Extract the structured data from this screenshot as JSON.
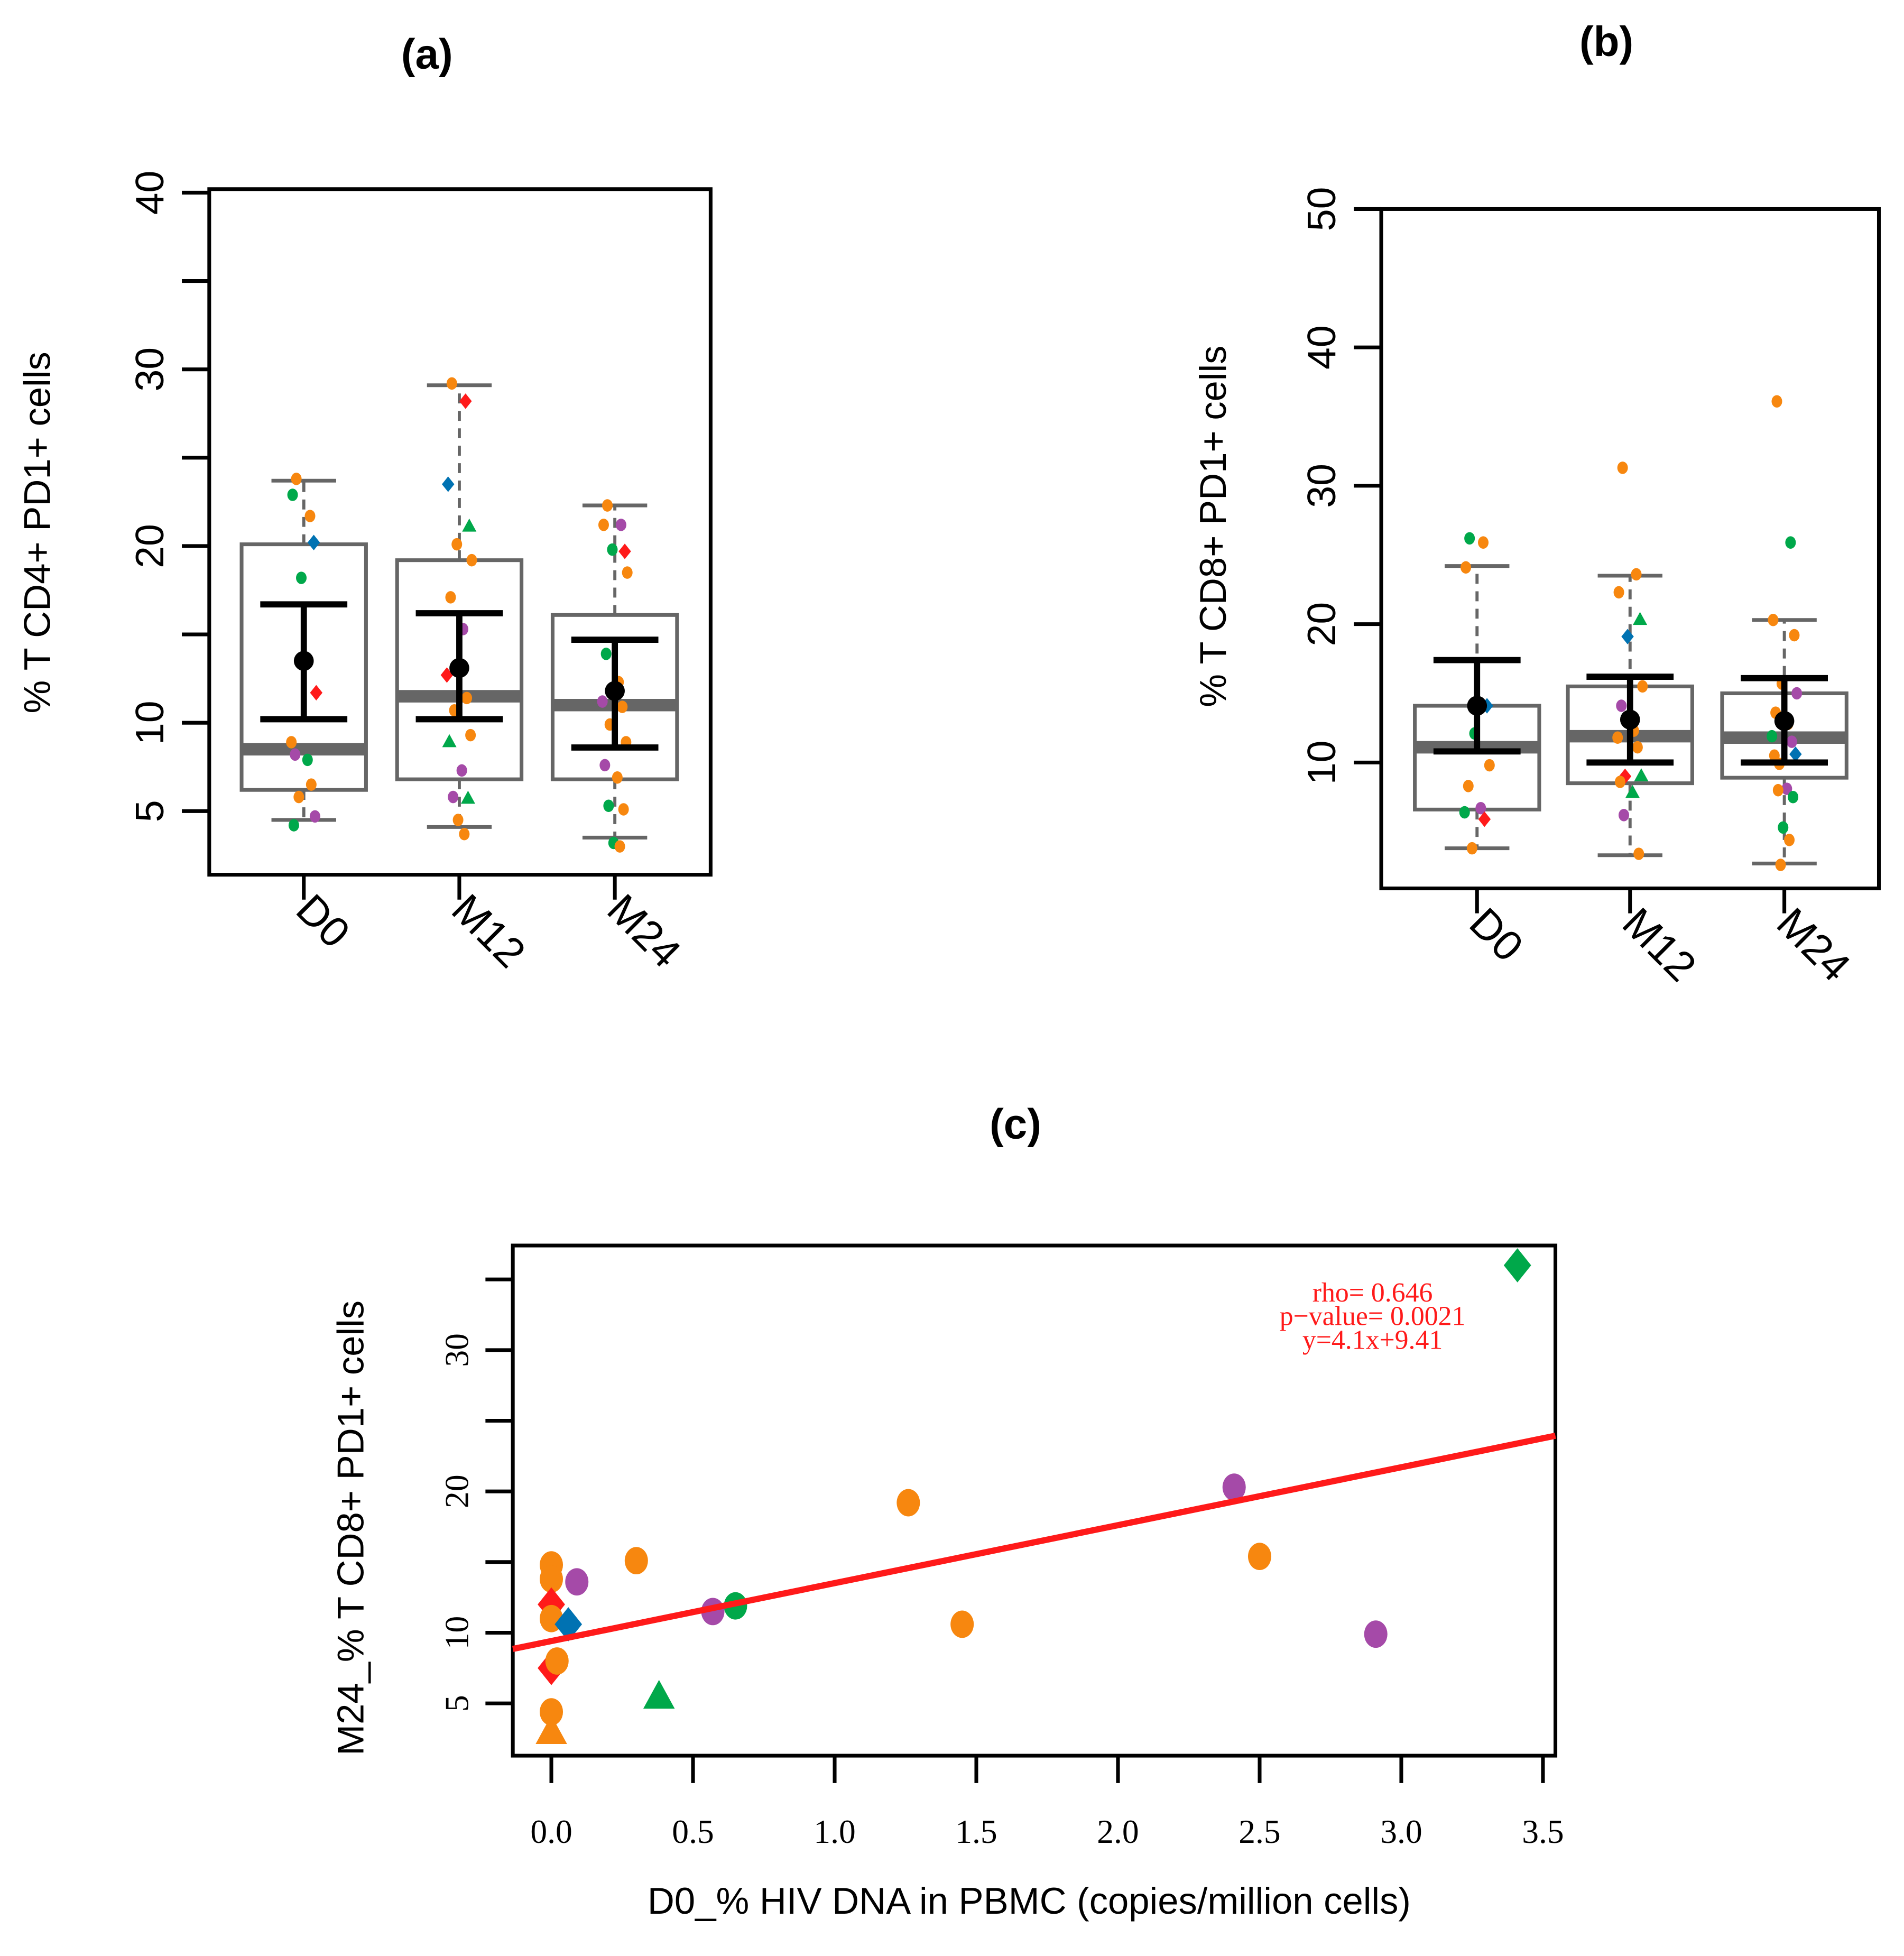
{
  "colors": {
    "orange": "#F7870F",
    "green": "#00A84A",
    "blue": "#0072B2",
    "red": "#FF1A1A",
    "purple": "#A54AA8",
    "line": "#FF1A1A",
    "box": "#666666"
  },
  "chart_data": [
    {
      "id": "a",
      "type": "box",
      "panel_label": "(a)",
      "ylabel": "% T CD4+ PD1+ cells",
      "ylim": [
        1.4,
        40.2
      ],
      "yticks": [
        5,
        10,
        15,
        20,
        25,
        30,
        35,
        40
      ],
      "ytick_labels": [
        "5",
        "10",
        "",
        "20",
        "",
        "30",
        "",
        "40"
      ],
      "categories": [
        "D0",
        "M12",
        "M24"
      ],
      "boxes": [
        {
          "q1": 6.2,
          "median": 8.5,
          "q3": 20.1,
          "whisker_low": 4.5,
          "whisker_high": 23.7,
          "mean": 13.5,
          "ci": [
            10.2,
            16.7
          ]
        },
        {
          "q1": 6.8,
          "median": 11.5,
          "q3": 19.2,
          "whisker_low": 4.1,
          "whisker_high": 29.1,
          "mean": 13.1,
          "ci": [
            10.2,
            16.2
          ]
        },
        {
          "q1": 6.8,
          "median": 11.0,
          "q3": 16.1,
          "whisker_low": 3.5,
          "whisker_high": 22.3,
          "mean": 11.8,
          "ci": [
            8.6,
            14.7
          ]
        }
      ],
      "points": [
        [
          [
            23.8,
            "orange",
            "circle"
          ],
          [
            21.7,
            "orange",
            "circle"
          ],
          [
            22.9,
            "green",
            "circle"
          ],
          [
            20.2,
            "blue",
            "diamond"
          ],
          [
            18.2,
            "green",
            "circle"
          ],
          [
            11.7,
            "red",
            "diamond"
          ],
          [
            8.2,
            "purple",
            "circle"
          ],
          [
            7.9,
            "green",
            "circle"
          ],
          [
            8.9,
            "orange",
            "circle"
          ],
          [
            6.5,
            "orange",
            "circle"
          ],
          [
            5.8,
            "orange",
            "circle"
          ],
          [
            4.7,
            "purple",
            "circle"
          ],
          [
            4.2,
            "green",
            "circle"
          ]
        ],
        [
          [
            29.2,
            "orange",
            "circle"
          ],
          [
            28.2,
            "red",
            "diamond"
          ],
          [
            23.5,
            "blue",
            "diamond"
          ],
          [
            21.1,
            "green",
            "triangle"
          ],
          [
            20.1,
            "orange",
            "circle"
          ],
          [
            19.2,
            "orange",
            "circle"
          ],
          [
            17.1,
            "orange",
            "circle"
          ],
          [
            15.3,
            "purple",
            "circle"
          ],
          [
            12.7,
            "red",
            "diamond"
          ],
          [
            11.4,
            "orange",
            "circle"
          ],
          [
            10.7,
            "orange",
            "circle"
          ],
          [
            9.3,
            "orange",
            "circle"
          ],
          [
            8.9,
            "green",
            "triangle"
          ],
          [
            7.3,
            "purple",
            "circle"
          ],
          [
            5.8,
            "purple",
            "circle"
          ],
          [
            5.7,
            "green",
            "triangle"
          ],
          [
            4.5,
            "orange",
            "circle"
          ],
          [
            3.7,
            "orange",
            "circle"
          ]
        ],
        [
          [
            22.3,
            "orange",
            "circle"
          ],
          [
            21.2,
            "purple",
            "circle"
          ],
          [
            21.2,
            "orange",
            "circle"
          ],
          [
            19.7,
            "red",
            "diamond"
          ],
          [
            19.8,
            "green",
            "circle"
          ],
          [
            18.5,
            "orange",
            "circle"
          ],
          [
            13.9,
            "green",
            "circle"
          ],
          [
            12.3,
            "orange",
            "circle"
          ],
          [
            11.2,
            "purple",
            "circle"
          ],
          [
            10.9,
            "orange",
            "circle"
          ],
          [
            9.9,
            "orange",
            "circle"
          ],
          [
            8.9,
            "orange",
            "circle"
          ],
          [
            7.6,
            "purple",
            "circle"
          ],
          [
            6.9,
            "orange",
            "circle"
          ],
          [
            5.3,
            "green",
            "circle"
          ],
          [
            5.1,
            "orange",
            "circle"
          ],
          [
            3.2,
            "green",
            "circle"
          ],
          [
            3.0,
            "orange",
            "circle"
          ]
        ]
      ]
    },
    {
      "id": "b",
      "type": "box",
      "panel_label": "(b)",
      "ylabel": "% T CD8+ PD1+ cells",
      "ylim": [
        0.9,
        50
      ],
      "yticks": [
        10,
        20,
        30,
        40,
        50
      ],
      "ytick_labels": [
        "10",
        "20",
        "30",
        "40",
        "50"
      ],
      "categories": [
        "D0",
        "M12",
        "M24"
      ],
      "boxes": [
        {
          "q1": 6.6,
          "median": 11.1,
          "q3": 14.1,
          "whisker_low": 3.8,
          "whisker_high": 24.2,
          "mean": 14.1,
          "ci": [
            10.8,
            17.4
          ]
        },
        {
          "q1": 8.5,
          "median": 11.9,
          "q3": 15.5,
          "whisker_low": 3.3,
          "whisker_high": 23.5,
          "mean": 13.1,
          "ci": [
            10.0,
            16.2
          ]
        },
        {
          "q1": 8.9,
          "median": 11.8,
          "q3": 15.0,
          "whisker_low": 2.7,
          "whisker_high": 20.3,
          "mean": 13.0,
          "ci": [
            10.0,
            16.1
          ]
        }
      ],
      "points": [
        [
          [
            26.2,
            "green",
            "circle"
          ],
          [
            25.9,
            "orange",
            "circle"
          ],
          [
            24.1,
            "orange",
            "circle"
          ],
          [
            14.1,
            "blue",
            "diamond"
          ],
          [
            12.1,
            "green",
            "circle"
          ],
          [
            9.8,
            "orange",
            "circle"
          ],
          [
            8.3,
            "orange",
            "circle"
          ],
          [
            6.7,
            "purple",
            "circle"
          ],
          [
            6.4,
            "green",
            "circle"
          ],
          [
            5.9,
            "red",
            "diamond"
          ],
          [
            3.8,
            "orange",
            "circle"
          ]
        ],
        [
          [
            31.3,
            "orange",
            "circle"
          ],
          [
            23.6,
            "orange",
            "circle"
          ],
          [
            22.3,
            "orange",
            "circle"
          ],
          [
            20.3,
            "green",
            "triangle"
          ],
          [
            19.1,
            "blue",
            "diamond"
          ],
          [
            15.5,
            "orange",
            "circle"
          ],
          [
            14.1,
            "purple",
            "circle"
          ],
          [
            12.3,
            "orange",
            "circle"
          ],
          [
            11.8,
            "orange",
            "circle"
          ],
          [
            11.1,
            "orange",
            "circle"
          ],
          [
            9.0,
            "red",
            "diamond"
          ],
          [
            9.0,
            "green",
            "triangle"
          ],
          [
            8.6,
            "orange",
            "circle"
          ],
          [
            7.8,
            "green",
            "triangle"
          ],
          [
            6.2,
            "purple",
            "circle"
          ],
          [
            3.4,
            "orange",
            "circle"
          ]
        ],
        [
          [
            36.1,
            "orange",
            "circle"
          ],
          [
            25.9,
            "green",
            "circle"
          ],
          [
            20.3,
            "orange",
            "circle"
          ],
          [
            19.2,
            "orange",
            "circle"
          ],
          [
            15.7,
            "orange",
            "circle"
          ],
          [
            15.0,
            "purple",
            "circle"
          ],
          [
            13.6,
            "orange",
            "circle"
          ],
          [
            12.8,
            "orange",
            "circle"
          ],
          [
            11.9,
            "green",
            "circle"
          ],
          [
            11.5,
            "purple",
            "circle"
          ],
          [
            9.9,
            "orange",
            "circle"
          ],
          [
            10.6,
            "blue",
            "diamond"
          ],
          [
            10.5,
            "orange",
            "circle"
          ],
          [
            8.1,
            "purple",
            "circle"
          ],
          [
            8.0,
            "orange",
            "circle"
          ],
          [
            7.5,
            "green",
            "circle"
          ],
          [
            5.3,
            "green",
            "circle"
          ],
          [
            4.4,
            "orange",
            "circle"
          ],
          [
            2.6,
            "orange",
            "circle"
          ]
        ]
      ]
    },
    {
      "id": "c",
      "type": "scatter",
      "panel_label": "(c)",
      "xlabel": "D0_% HIV DNA in PBMC (copies/million cells)",
      "ylabel": "M24_% T CD8+ PD1+ cells",
      "xlim": [
        -0.136,
        3.544
      ],
      "ylim": [
        1.3,
        37.4
      ],
      "xticks": [
        0,
        0.5,
        1,
        1.5,
        2,
        2.5,
        3,
        3.5
      ],
      "xtick_labels": [
        "0.0",
        "0.5",
        "1.0",
        "1.5",
        "2.0",
        "2.5",
        "3.0",
        "3.5"
      ],
      "yticks": [
        5,
        10,
        15,
        20,
        25,
        30,
        35
      ],
      "ytick_labels": [
        "5",
        "10",
        "",
        "20",
        "",
        "30",
        ""
      ],
      "regression": {
        "slope": 4.1,
        "intercept": 9.41
      },
      "annotation": [
        "rho=  0.646",
        "p−value=  0.0021",
        "y=4.1x+9.41"
      ],
      "points": [
        [
          3.41,
          36.0,
          "green",
          "diamond"
        ],
        [
          2.41,
          20.3,
          "purple",
          "circle"
        ],
        [
          1.26,
          19.2,
          "orange",
          "circle"
        ],
        [
          2.5,
          15.4,
          "orange",
          "circle"
        ],
        [
          0.3,
          15.1,
          "orange",
          "circle"
        ],
        [
          0.0,
          14.8,
          "orange",
          "circle"
        ],
        [
          0.0,
          13.8,
          "orange",
          "circle"
        ],
        [
          0.09,
          13.6,
          "purple",
          "circle"
        ],
        [
          0.0,
          12.0,
          "red",
          "diamond"
        ],
        [
          0.65,
          11.9,
          "green",
          "circle"
        ],
        [
          0.57,
          11.5,
          "purple",
          "circle"
        ],
        [
          0.0,
          11.0,
          "orange",
          "circle"
        ],
        [
          0.06,
          10.6,
          "blue",
          "diamond"
        ],
        [
          1.45,
          10.6,
          "orange",
          "circle"
        ],
        [
          2.91,
          9.9,
          "purple",
          "circle"
        ],
        [
          0.0,
          7.5,
          "red",
          "diamond"
        ],
        [
          0.02,
          8.0,
          "orange",
          "circle"
        ],
        [
          0.38,
          5.4,
          "green",
          "triangle"
        ],
        [
          0.0,
          4.4,
          "orange",
          "circle"
        ],
        [
          0.0,
          2.9,
          "orange",
          "triangle"
        ]
      ]
    }
  ]
}
